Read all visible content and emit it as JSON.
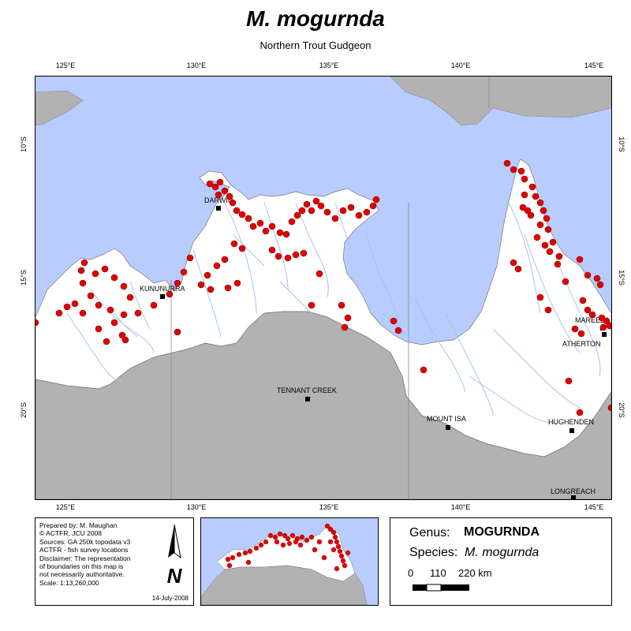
{
  "title": "M. mogurnda",
  "subtitle": "Northern Trout Gudgeon",
  "graticule": {
    "lon_labels": [
      "125°E",
      "130°E",
      "135°E",
      "140°E",
      "145°E"
    ],
    "lat_labels": [
      "10°S",
      "15°S",
      "20°S"
    ]
  },
  "cities": [
    {
      "name": "DARWIN"
    },
    {
      "name": "KUNUNURRA"
    },
    {
      "name": "TENNANT CREEK"
    },
    {
      "name": "MOUNT ISA"
    },
    {
      "name": "HUGHENDEN"
    },
    {
      "name": "LONGREACH"
    },
    {
      "name": "MAREEBA"
    },
    {
      "name": "ATHERTON"
    }
  ],
  "credits": {
    "lines": [
      "Prepared by: M. Maughan",
      "© ACTFR, JCU 2008",
      "Sources: GA 250k topodata v3",
      "ACTFR - fish survey locations",
      "Disclaimer: The representation",
      "of boundaries on this map is",
      "not necessarily authoritative.",
      "Scale: 1:13,260,000"
    ],
    "date": "14-July-2008",
    "north_arrow_letter": "N"
  },
  "taxon": {
    "genus_label": "Genus:",
    "genus": "MOGURNDA",
    "species_label": "Species:",
    "species": "M. mogurnda"
  },
  "scale": {
    "labels": [
      "0",
      "110",
      "220 km"
    ]
  },
  "colors": {
    "sea": "#b8cdfd",
    "land_in_range": "#ffffff",
    "land_outside": "#b2b2b2",
    "rivers": "#a9c2ef",
    "survey_points": "#e00000"
  },
  "icons": {
    "city_marker": "black-square",
    "north_arrow": "north-arrow-icon"
  }
}
